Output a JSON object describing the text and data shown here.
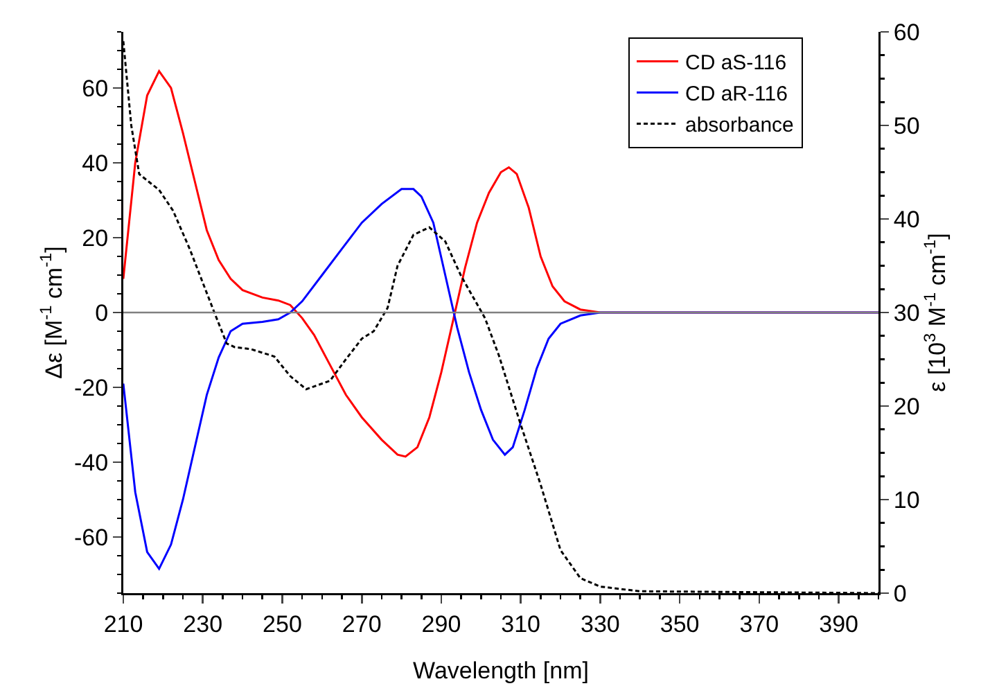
{
  "chart_data": {
    "type": "line",
    "xlabel": "Wavelength [nm]",
    "ylabel": "Δε [M$^{-1}$ cm$^{-1}$]",
    "y2label": "ε [10$^{3}$ M$^{-1}$ cm$^{-1}$]",
    "xlim": [
      210,
      400
    ],
    "xticks": [
      210,
      230,
      250,
      270,
      290,
      310,
      330,
      350,
      370,
      390
    ],
    "ylim": [
      -75,
      75
    ],
    "yticks": [
      -60,
      -40,
      -20,
      0,
      20,
      40,
      60
    ],
    "y2lim": [
      0,
      60
    ],
    "y2ticks": [
      0,
      10,
      20,
      30,
      40,
      50,
      60
    ],
    "grid": false,
    "legend": "top right",
    "marker": "none",
    "ref_lines": [
      {
        "axis": "y",
        "value": 0,
        "color": "#808080"
      }
    ],
    "series": [
      {
        "name": "CD aS-116",
        "color": "#ff0000",
        "line_style": "solid",
        "x": [
          210,
          213,
          216,
          219,
          222,
          225,
          228,
          231,
          234,
          237,
          240,
          245,
          249,
          252,
          255,
          258,
          262,
          266,
          270,
          275,
          279,
          281,
          284,
          287,
          290,
          293,
          296,
          299,
          302,
          305,
          307,
          309,
          312,
          315,
          318,
          321,
          325,
          330,
          400
        ],
        "values": [
          9,
          40,
          58,
          64.5,
          60,
          48,
          35,
          22,
          14,
          9,
          6,
          4,
          3.2,
          2,
          -1.5,
          -6,
          -14,
          -22,
          -28,
          -34,
          -38,
          -38.5,
          -36,
          -28,
          -16,
          -2,
          12,
          24,
          32,
          37.5,
          38.8,
          37,
          28,
          15,
          7,
          3,
          0.8,
          0,
          0
        ]
      },
      {
        "name": "CD aR-116",
        "color": "#0000ff",
        "line_style": "solid",
        "x": [
          210,
          213,
          216,
          219,
          222,
          225,
          228,
          231,
          234,
          237,
          240,
          245,
          249,
          252,
          255,
          260,
          265,
          270,
          275,
          280,
          283,
          285,
          288,
          291,
          294,
          297,
          300,
          303,
          306,
          308,
          311,
          314,
          317,
          320,
          325,
          330,
          400
        ],
        "values": [
          -19,
          -48,
          -64,
          -68.5,
          -62,
          -50,
          -36,
          -22,
          -12,
          -5,
          -3,
          -2.5,
          -1.8,
          0,
          3,
          10,
          17,
          24,
          29,
          33,
          33,
          31,
          24,
          10,
          -4,
          -16,
          -26,
          -34,
          -38,
          -36,
          -26,
          -15,
          -7,
          -3,
          -0.8,
          0,
          0
        ]
      },
      {
        "name": "absorbance",
        "color": "#000000",
        "line_style": "dashed",
        "axis": "y2",
        "x": [
          210,
          212,
          214,
          219,
          222.5,
          226.7,
          233,
          236,
          238,
          242,
          248,
          252,
          256,
          262,
          266,
          270,
          273,
          276.5,
          279,
          283,
          287,
          291,
          295,
          301,
          304.5,
          310,
          315,
          320,
          325,
          330,
          340,
          400
        ],
        "values": [
          59,
          50,
          44.8,
          43.1,
          40.9,
          36.8,
          29.9,
          26.7,
          26.3,
          26.1,
          25.3,
          23.2,
          21.8,
          22.7,
          25,
          27.2,
          28,
          30.5,
          35,
          38.3,
          39.1,
          37.6,
          33.9,
          29.4,
          25.4,
          18,
          11.6,
          4.6,
          1.6,
          0.7,
          0.2,
          0
        ]
      }
    ]
  }
}
